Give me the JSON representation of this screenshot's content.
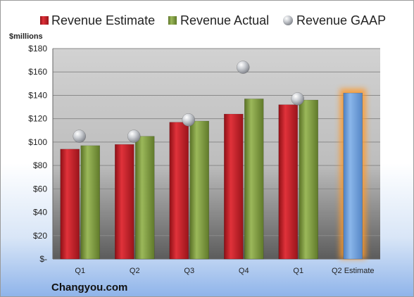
{
  "chart_data": {
    "type": "bar",
    "categories": [
      "Q1",
      "Q2",
      "Q3",
      "Q4",
      "Q1",
      "Q2 Estimate"
    ],
    "series": [
      {
        "name": "Revenue Estimate",
        "values": [
          94,
          98,
          117,
          124,
          132,
          null
        ],
        "color": "#c8202a"
      },
      {
        "name": "Revenue Actual",
        "values": [
          97,
          105,
          118,
          137,
          136,
          null
        ],
        "color": "#7f9b3e"
      },
      {
        "name": "Revenue GAAP",
        "values": [
          105,
          105,
          119,
          164,
          137,
          null
        ],
        "color": "#b8bcc2"
      },
      {
        "name": "Q2 Estimate",
        "values": [
          null,
          null,
          null,
          null,
          null,
          142
        ],
        "color": "#6f9fd8"
      }
    ],
    "ylabel": "$millions",
    "ylim": [
      0,
      180
    ],
    "yticks": [
      0,
      20,
      40,
      60,
      80,
      100,
      120,
      140,
      160,
      180
    ],
    "ytick_labels": [
      "$-",
      "$20",
      "$40",
      "$60",
      "$80",
      "$100",
      "$120",
      "$140",
      "$160",
      "$180"
    ],
    "grid": true,
    "legend_position": "top",
    "source": "Changyou.com"
  }
}
